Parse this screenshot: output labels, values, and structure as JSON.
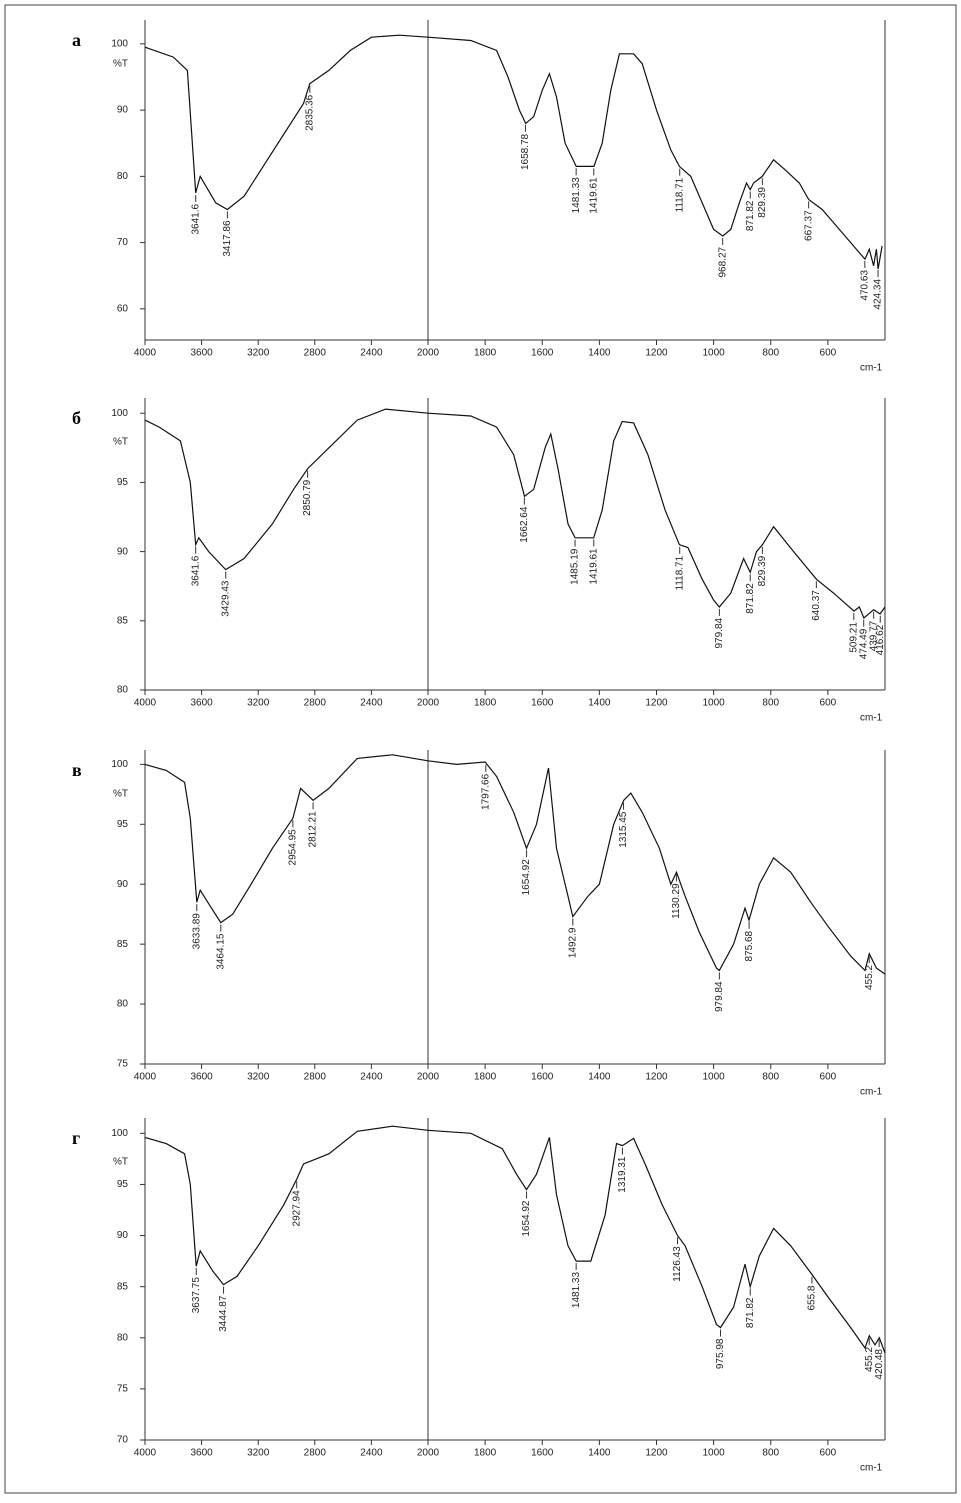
{
  "chart_data": [
    {
      "type": "line",
      "label": "а",
      "ylabel": "%T",
      "xlabel": "cm-1",
      "color": "#111111",
      "xlim": [
        4000,
        400
      ],
      "x_break": 2000,
      "ylim": [
        55.3,
        103.6
      ],
      "yticks": [
        60,
        70,
        80,
        90,
        100
      ],
      "xticks": [
        4000,
        3600,
        3200,
        2800,
        2400,
        2000,
        1800,
        1600,
        1400,
        1200,
        1000,
        800,
        600
      ],
      "x": [
        4000,
        3800,
        3700,
        3641.6,
        3610,
        3500,
        3418,
        3300,
        3150,
        3000,
        2880,
        2835,
        2700,
        2550,
        2400,
        2200,
        2000,
        1850,
        1760,
        1720,
        1680,
        1658,
        1630,
        1600,
        1575,
        1550,
        1520,
        1481,
        1450,
        1419,
        1390,
        1360,
        1330,
        1280,
        1250,
        1200,
        1150,
        1120,
        1080,
        1040,
        1000,
        968,
        940,
        910,
        885,
        872,
        860,
        830,
        790,
        750,
        700,
        667,
        620,
        560,
        520,
        480,
        470,
        455,
        440,
        430,
        424,
        410
      ],
      "values": [
        99.5,
        98,
        96,
        77.5,
        80,
        76,
        75,
        77,
        82,
        87,
        91,
        94,
        96,
        99,
        101,
        101.3,
        101,
        100.5,
        99,
        95,
        90,
        88,
        89,
        93,
        95.5,
        92,
        85,
        81.5,
        81.5,
        81.5,
        85,
        93,
        98.5,
        98.5,
        97,
        90,
        84,
        81.5,
        80,
        76,
        72,
        71,
        72,
        76,
        79,
        78,
        79,
        80,
        82.5,
        81,
        79,
        76.5,
        75,
        72,
        70,
        68,
        67.5,
        69,
        66.5,
        69,
        66,
        69.5
      ],
      "peaks": [
        3641.6,
        3417.86,
        2835.36,
        1658.78,
        1481.33,
        1419.61,
        1118.71,
        968.27,
        871.82,
        829.39,
        667.37,
        470.63,
        424.34
      ]
    },
    {
      "type": "line",
      "label": "б",
      "ylabel": "%T",
      "xlabel": "cm-1",
      "color": "#111111",
      "xlim": [
        4000,
        400
      ],
      "x_break": 2000,
      "ylim": [
        80,
        101.1
      ],
      "yticks": [
        80,
        85,
        90,
        95,
        100
      ],
      "xticks": [
        4000,
        3600,
        3200,
        2800,
        2400,
        2000,
        1800,
        1600,
        1400,
        1200,
        1000,
        800,
        600
      ],
      "x": [
        4000,
        3900,
        3750,
        3680,
        3641.6,
        3620,
        3550,
        3430,
        3300,
        3100,
        2950,
        2850,
        2700,
        2500,
        2300,
        2000,
        1850,
        1760,
        1700,
        1662,
        1630,
        1590,
        1570,
        1545,
        1510,
        1485,
        1420,
        1390,
        1350,
        1320,
        1280,
        1230,
        1170,
        1120,
        1090,
        1040,
        1000,
        980,
        940,
        895,
        872,
        850,
        829,
        790,
        720,
        640,
        580,
        509,
        490,
        474,
        440,
        417,
        400
      ],
      "values": [
        99.5,
        99,
        98,
        95,
        90.5,
        91,
        90,
        88.7,
        89.5,
        92,
        94.5,
        96,
        97.5,
        99.5,
        100.3,
        100,
        99.8,
        99,
        97,
        94,
        94.5,
        97.5,
        98.5,
        96,
        92,
        91,
        91,
        93,
        98,
        99.4,
        99.3,
        97,
        93,
        90.5,
        90.3,
        88,
        86.5,
        86,
        87,
        89.5,
        88.5,
        90,
        90.5,
        91.8,
        90,
        88,
        87,
        85.7,
        86,
        85.2,
        85.8,
        85.5,
        86
      ],
      "peaks": [
        3641.6,
        3429.43,
        2850.79,
        1662.64,
        1485.19,
        1419.61,
        1118.71,
        979.84,
        871.82,
        829.39,
        640.37,
        509.21,
        474.49,
        439.77,
        416.62
      ]
    },
    {
      "type": "line",
      "label": "в",
      "ylabel": "%T",
      "xlabel": "cm-1",
      "color": "#111111",
      "xlim": [
        4000,
        400
      ],
      "x_break": 2000,
      "ylim": [
        75,
        101.2
      ],
      "yticks": [
        75,
        80,
        85,
        90,
        95,
        100
      ],
      "xticks": [
        4000,
        3600,
        3200,
        2800,
        2400,
        2000,
        1800,
        1600,
        1400,
        1200,
        1000,
        800,
        600
      ],
      "x": [
        4000,
        3850,
        3720,
        3680,
        3634,
        3610,
        3530,
        3464,
        3380,
        3250,
        3100,
        2955,
        2900,
        2812,
        2700,
        2500,
        2250,
        2000,
        1900,
        1800,
        1760,
        1700,
        1655,
        1620,
        1578,
        1550,
        1510,
        1493,
        1440,
        1400,
        1350,
        1315,
        1290,
        1250,
        1190,
        1150,
        1130,
        1100,
        1050,
        990,
        980,
        930,
        890,
        876,
        840,
        790,
        730,
        660,
        600,
        520,
        470,
        455,
        430,
        400
      ],
      "values": [
        100,
        99.5,
        98.5,
        95.5,
        88.5,
        89.5,
        88,
        86.8,
        87.5,
        90,
        93,
        95.5,
        98,
        97,
        98,
        100.5,
        100.8,
        100.3,
        100,
        100.2,
        99,
        96,
        93,
        95,
        99.7,
        93,
        89,
        87.3,
        89,
        90,
        95,
        97,
        97.6,
        96,
        93,
        90,
        91,
        89,
        86,
        83,
        82.8,
        85,
        88,
        87,
        90,
        92.2,
        91,
        88.5,
        86.5,
        84,
        82.8,
        84.2,
        83,
        82.5
      ],
      "peaks": [
        3633.89,
        3464.15,
        2954.95,
        2812.21,
        1797.66,
        1654.92,
        1492.9,
        1315.45,
        1130.29,
        979.84,
        875.68,
        455.2
      ]
    },
    {
      "type": "line",
      "label": "г",
      "ylabel": "%T",
      "xlabel": "cm-1",
      "color": "#111111",
      "xlim": [
        4000,
        400
      ],
      "x_break": 2000,
      "ylim": [
        70,
        101.5
      ],
      "yticks": [
        70,
        75,
        80,
        85,
        90,
        95,
        100
      ],
      "xticks": [
        4000,
        3600,
        3200,
        2800,
        2400,
        2000,
        1800,
        1600,
        1400,
        1200,
        1000,
        800,
        600
      ],
      "x": [
        4000,
        3850,
        3720,
        3680,
        3638,
        3610,
        3520,
        3445,
        3350,
        3200,
        3020,
        2928,
        2880,
        2700,
        2500,
        2250,
        2000,
        1850,
        1740,
        1690,
        1655,
        1620,
        1575,
        1550,
        1510,
        1481,
        1430,
        1380,
        1340,
        1319,
        1280,
        1240,
        1180,
        1126,
        1100,
        1040,
        990,
        976,
        930,
        890,
        872,
        840,
        790,
        730,
        656,
        600,
        520,
        470,
        455,
        435,
        420,
        400
      ],
      "values": [
        99.6,
        99,
        98,
        95,
        87,
        88.5,
        86.5,
        85.2,
        86,
        89,
        93,
        95.5,
        97,
        98,
        100.2,
        100.7,
        100.3,
        100,
        98.5,
        96,
        94.5,
        96,
        99.6,
        94,
        89,
        87.5,
        87.5,
        92,
        99,
        98.8,
        99.5,
        97,
        93,
        90,
        89,
        85,
        81.3,
        81,
        83,
        87.2,
        85,
        88,
        90.7,
        89,
        86.2,
        84,
        81,
        79,
        80.2,
        79.3,
        80,
        78.5
      ],
      "peaks": [
        3637.75,
        3444.87,
        2927.94,
        1654.92,
        1481.33,
        1319.31,
        1126.43,
        975.98,
        871.82,
        655.8,
        455.2,
        420.48
      ]
    }
  ]
}
